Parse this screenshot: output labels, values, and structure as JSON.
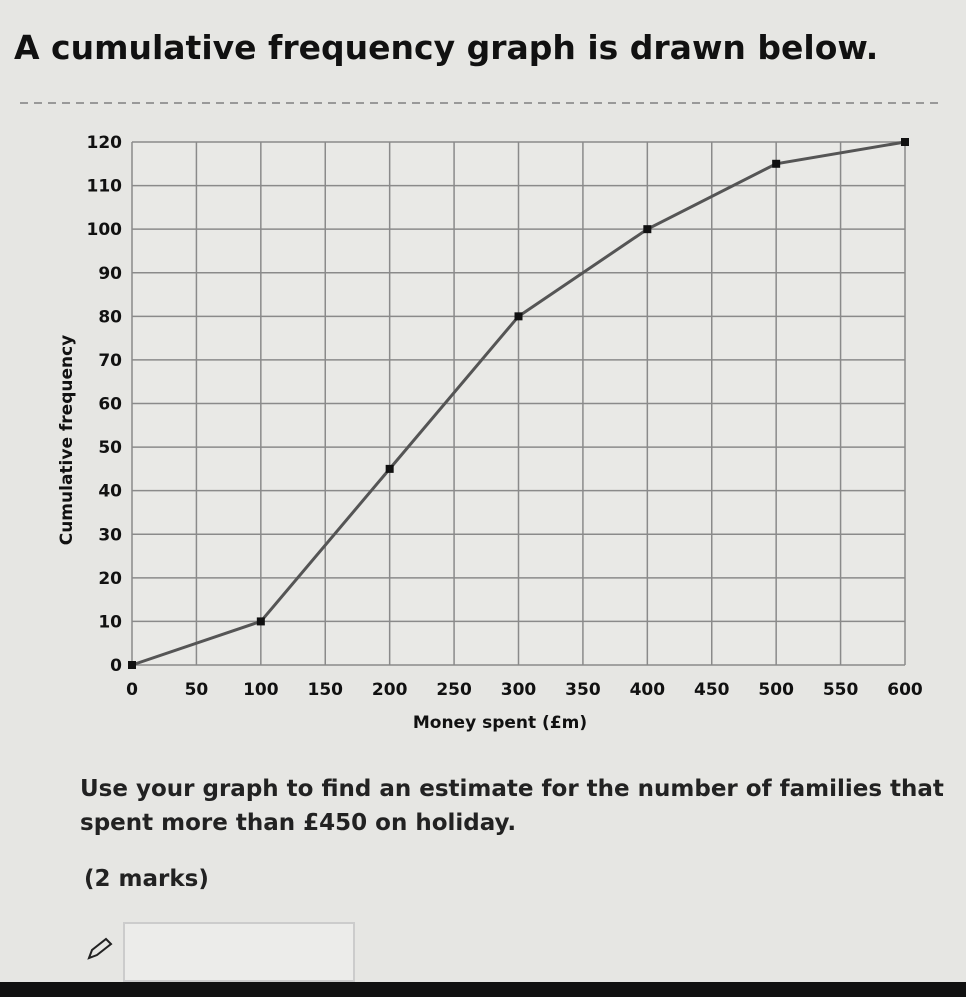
{
  "header": {
    "title": "A cumulative frequency graph is drawn below."
  },
  "chart_data": {
    "type": "line",
    "xlabel": "Money spent (£m)",
    "ylabel": "Cumulative frequency",
    "x": [
      0,
      100,
      200,
      300,
      400,
      500,
      600
    ],
    "series": [
      {
        "color": "#555555",
        "values": [
          0,
          10,
          45,
          80,
          100,
          115,
          120
        ]
      }
    ],
    "xlim": [
      0,
      600
    ],
    "xticks": [
      0,
      50,
      100,
      150,
      200,
      250,
      300,
      350,
      400,
      450,
      500,
      550,
      600
    ],
    "ylim": [
      0,
      120
    ],
    "yticks": [
      0,
      10,
      20,
      30,
      40,
      50,
      60,
      70,
      80,
      90,
      100,
      110,
      120
    ],
    "grid": true
  },
  "question": {
    "text": "Use your graph to find an estimate for the number of families that spent more than £450 on holiday.",
    "marks": "(2 marks)"
  }
}
